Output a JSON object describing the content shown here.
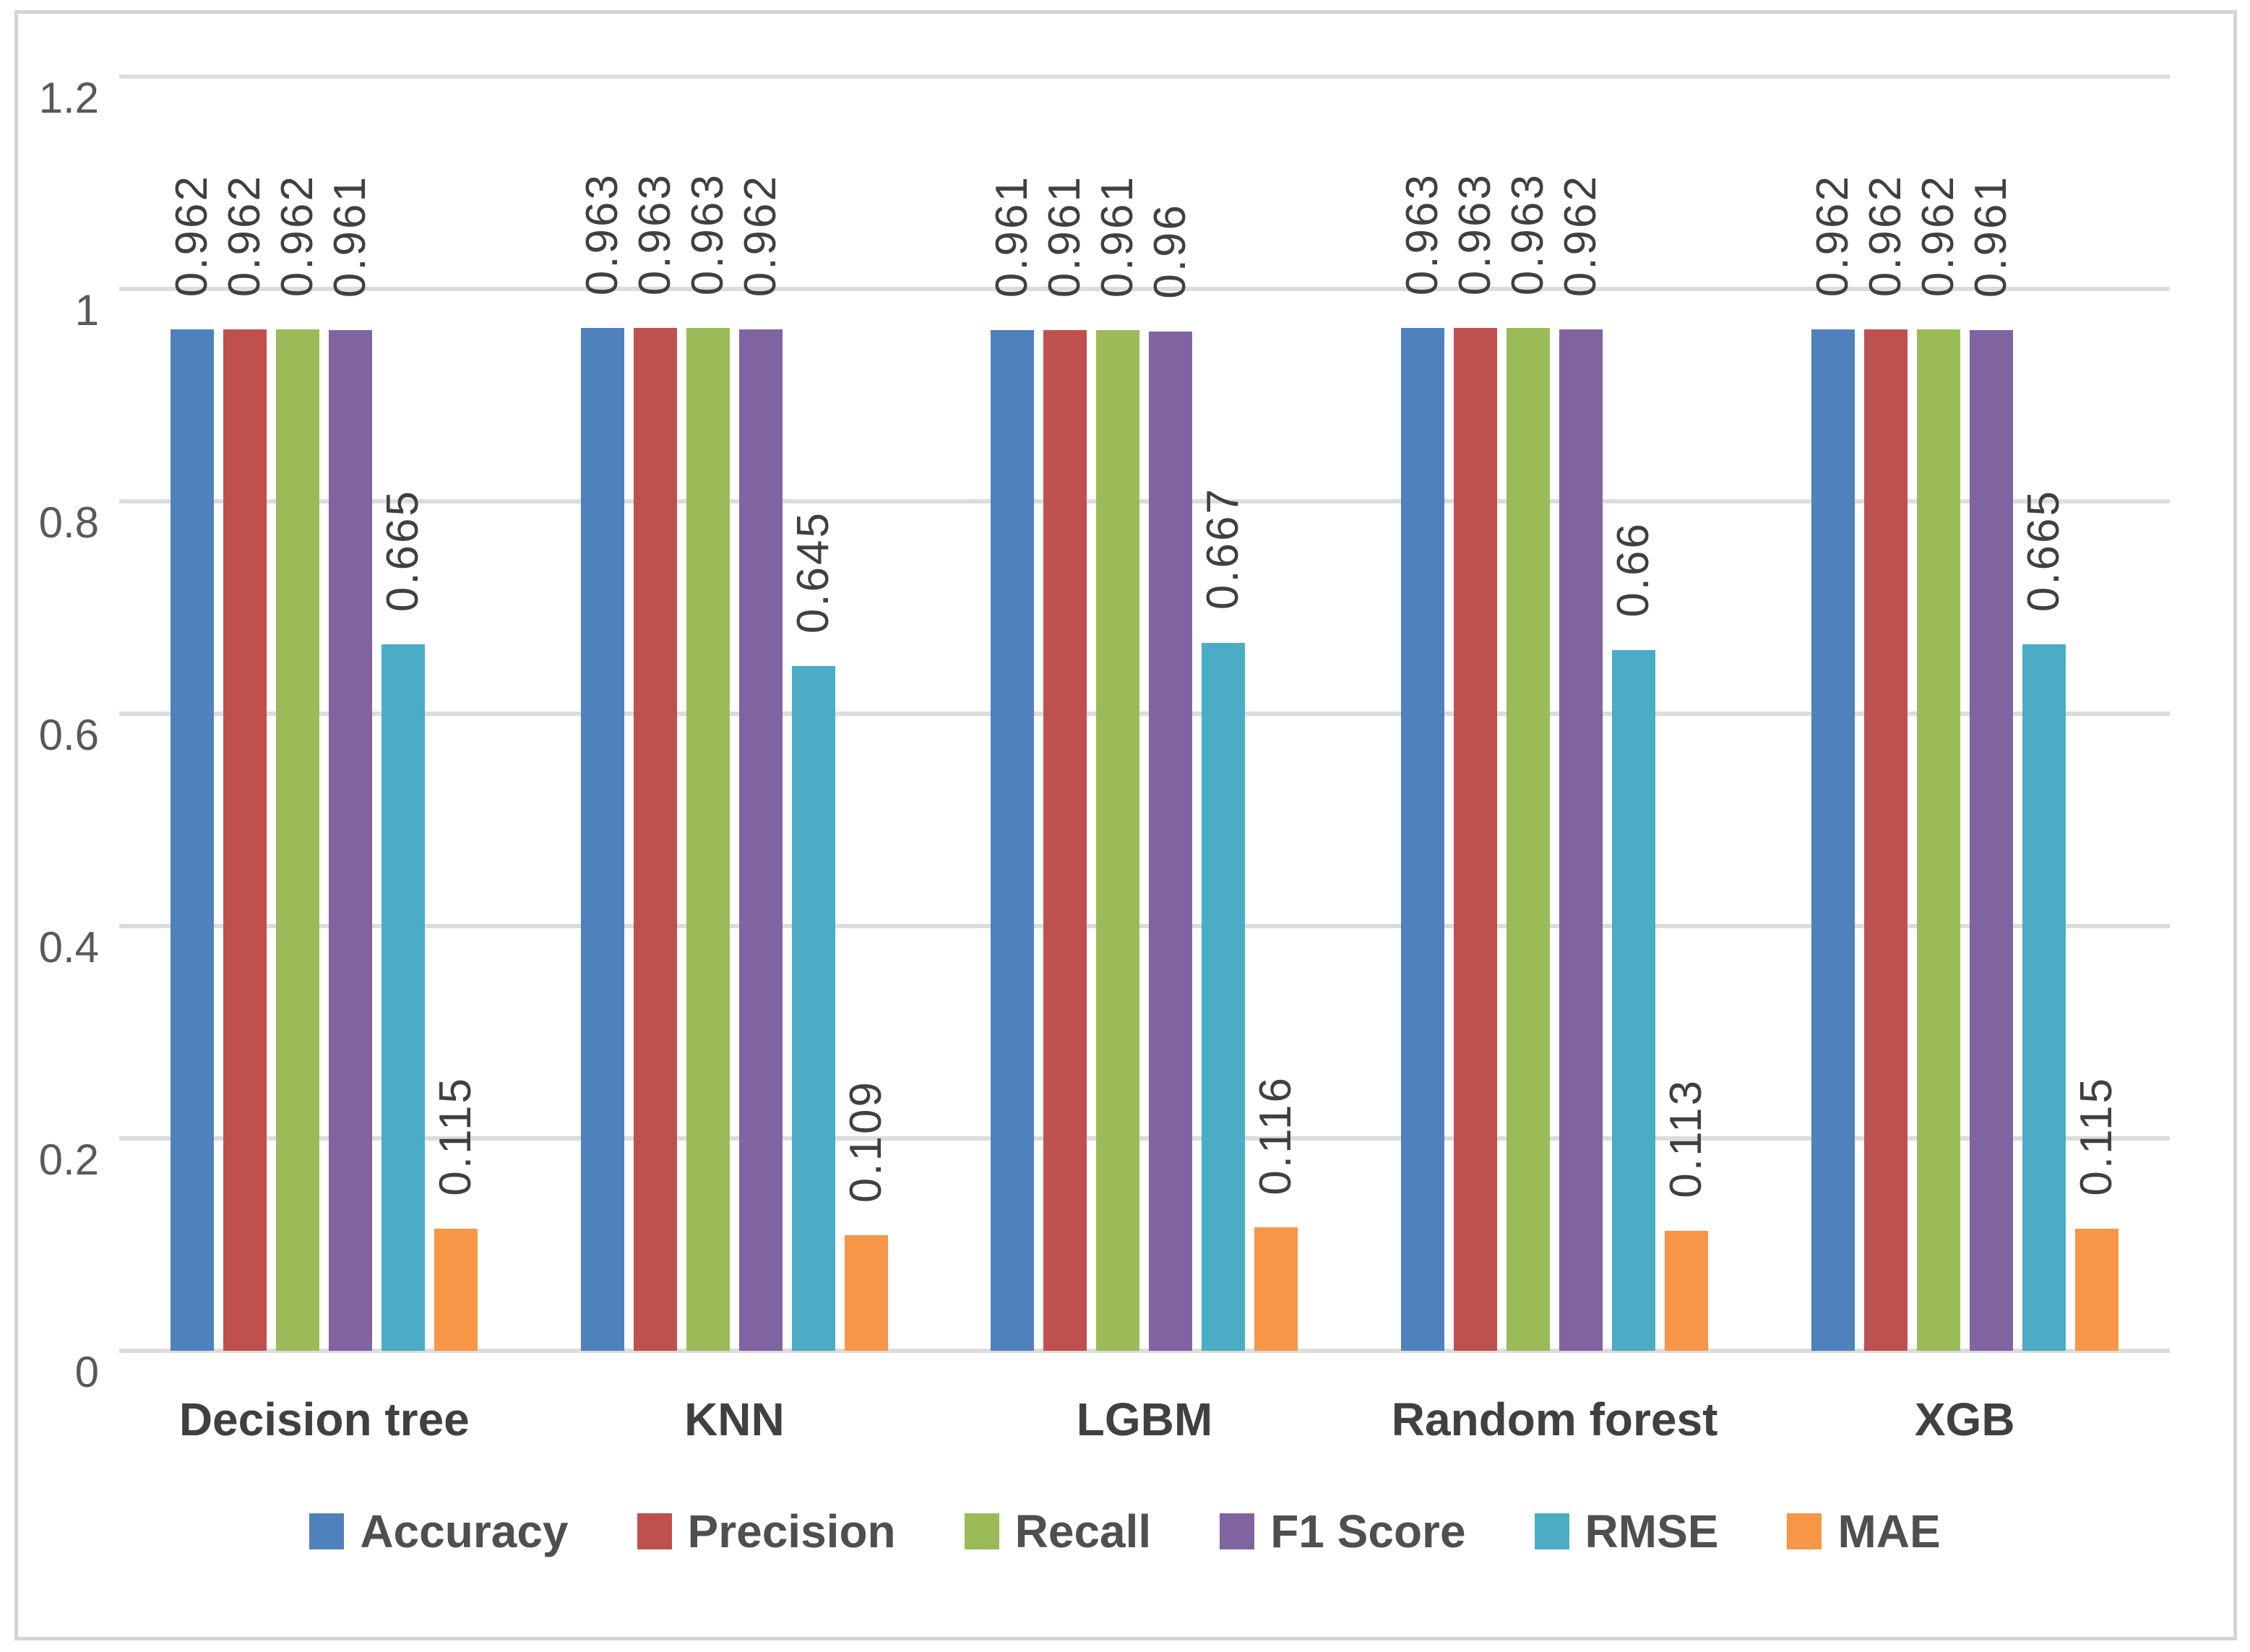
{
  "chart_data": {
    "type": "bar",
    "title": "",
    "xlabel": "",
    "ylabel": "",
    "ylim": [
      0,
      1.2
    ],
    "grid": "horizontal",
    "legend_position": "bottom",
    "ytick_labels": [
      "0",
      "0.2",
      "0.4",
      "0.6",
      "0.8",
      "1",
      "1.2"
    ],
    "ytick_values": [
      0,
      0.2,
      0.4,
      0.6,
      0.8,
      1,
      1.2
    ],
    "categories": [
      "Decision tree",
      "KNN",
      "LGBM",
      "Random forest",
      "XGB"
    ],
    "series": [
      {
        "name": "Accuracy",
        "color": "#4F81BD",
        "values": [
          0.962,
          0.963,
          0.961,
          0.963,
          0.962
        ]
      },
      {
        "name": "Precision",
        "color": "#C0504D",
        "values": [
          0.962,
          0.963,
          0.961,
          0.963,
          0.962
        ]
      },
      {
        "name": "Recall",
        "color": "#9BBB59",
        "values": [
          0.962,
          0.963,
          0.961,
          0.963,
          0.962
        ]
      },
      {
        "name": "F1 Score",
        "color": "#8064A2",
        "values": [
          0.961,
          0.962,
          0.96,
          0.962,
          0.961
        ]
      },
      {
        "name": "RMSE",
        "color": "#4BACC6",
        "values": [
          0.665,
          0.645,
          0.667,
          0.66,
          0.665
        ]
      },
      {
        "name": "MAE",
        "color": "#F79646",
        "values": [
          0.115,
          0.109,
          0.116,
          0.113,
          0.115
        ]
      }
    ],
    "colors": {
      "gridline": "#dcdcdc",
      "tick_text": "#595959",
      "data_label_text": "#404040",
      "category_text": "#404040",
      "legend_text": "#4f4f4f",
      "frame_border": "#d4d4d4",
      "background": "#ffffff"
    }
  }
}
